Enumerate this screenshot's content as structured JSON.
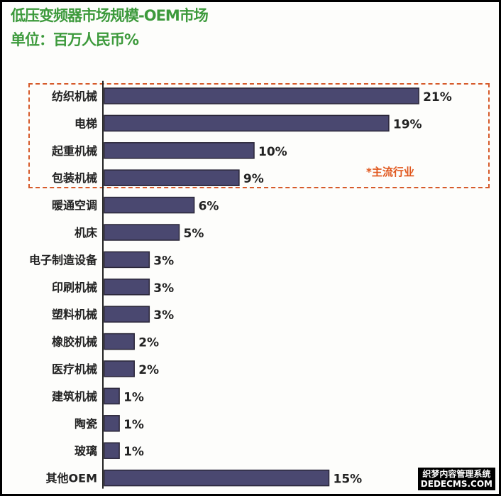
{
  "chart_data": {
    "type": "bar",
    "orientation": "horizontal",
    "title": "低压变频器市场规模-OEM市场",
    "subtitle": "单位：百万人民币%",
    "categories": [
      "纺织机械",
      "电梯",
      "起重机械",
      "包装机械",
      "暖通空调",
      "机床",
      "电子制造设备",
      "印刷机械",
      "塑料机械",
      "橡胶机械",
      "医疗机械",
      "建筑机械",
      "陶瓷",
      "玻璃",
      "其他OEM"
    ],
    "values": [
      21,
      19,
      10,
      9,
      6,
      5,
      3,
      3,
      3,
      2,
      2,
      1,
      1,
      1,
      15
    ],
    "value_suffix": "%",
    "highlight": {
      "categories": [
        "纺织机械",
        "电梯",
        "起重机械",
        "包装机械"
      ],
      "note": "*主流行业",
      "color": "#d65a2a"
    },
    "bar_color": "#4a4870",
    "title_color": "#3d9a3c",
    "grid": false,
    "legend": "none"
  },
  "watermark": {
    "line1": "织梦内容管理系统",
    "line2": "DEDECMS.COM"
  }
}
